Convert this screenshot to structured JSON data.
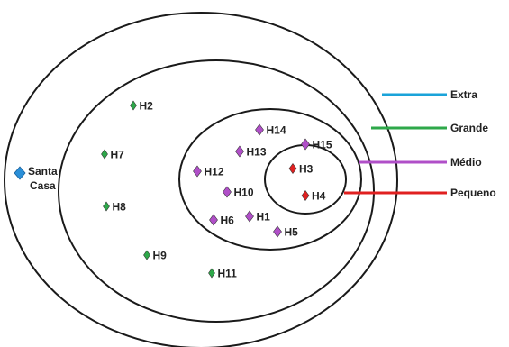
{
  "diagram": {
    "colors": {
      "extra": "#1aa3d9",
      "grande": "#2ea84a",
      "medio": "#b04fc8",
      "pequeno": "#e02020",
      "santa_casa": "#2a8fd8",
      "ring_stroke": "#1a1a1a",
      "label": "#222222"
    },
    "santa_casa": {
      "line1": "Santa",
      "line2": "Casa"
    },
    "legend": [
      {
        "key": "extra",
        "label": "Extra"
      },
      {
        "key": "grande",
        "label": "Grande"
      },
      {
        "key": "medio",
        "label": "Médio"
      },
      {
        "key": "pequeno",
        "label": "Pequeno"
      }
    ],
    "nodes": [
      {
        "label": "H1",
        "category": "medio"
      },
      {
        "label": "H2",
        "category": "grande"
      },
      {
        "label": "H3",
        "category": "pequeno"
      },
      {
        "label": "H4",
        "category": "pequeno"
      },
      {
        "label": "H5",
        "category": "medio"
      },
      {
        "label": "H6",
        "category": "medio"
      },
      {
        "label": "H7",
        "category": "grande"
      },
      {
        "label": "H8",
        "category": "grande"
      },
      {
        "label": "H9",
        "category": "grande"
      },
      {
        "label": "H10",
        "category": "medio"
      },
      {
        "label": "H11",
        "category": "grande"
      },
      {
        "label": "H12",
        "category": "medio"
      },
      {
        "label": "H13",
        "category": "medio"
      },
      {
        "label": "H14",
        "category": "medio"
      },
      {
        "label": "H15",
        "category": "medio"
      }
    ]
  }
}
